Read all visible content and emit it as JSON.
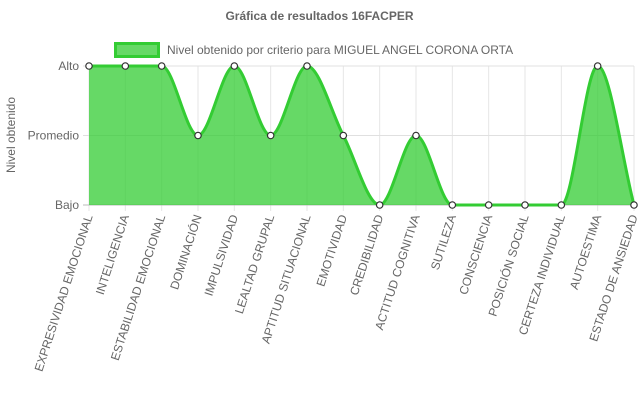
{
  "chart_data": {
    "type": "line",
    "title": "Gráfica de resultados 16FACPER",
    "ylabel": "Nivel obtenido",
    "xlabel": "",
    "y_levels": [
      "Bajo",
      "Promedio",
      "Alto"
    ],
    "categories": [
      "EXPRESIVIDAD EMOCIONAL",
      "INTELIGENCIA",
      "ESTABILIDAD EMOCIONAL",
      "DOMINACIÓN",
      "IMPULSIVIDAD",
      "LEALTAD GRUPAL",
      "APTITUD SITUACIONAL",
      "EMOTIVIDAD",
      "CREDIBILIDAD",
      "ACTITUD COGNITIVA",
      "SUTILEZA",
      "CONSCIENCIA",
      "POSICIÓN SOCIAL",
      "CERTEZA INDIVIDUAL",
      "AUTOESTIMA",
      "ESTADO DE ANSIEDAD"
    ],
    "series": [
      {
        "name": "Nivel obtenido por criterio para MIGUEL ANGEL CORONA ORTA",
        "values": [
          "Alto",
          "Alto",
          "Alto",
          "Promedio",
          "Alto",
          "Promedio",
          "Alto",
          "Promedio",
          "Bajo",
          "Promedio",
          "Bajo",
          "Bajo",
          "Bajo",
          "Bajo",
          "Alto",
          "Bajo"
        ],
        "color": "#33cc33",
        "fill": "rgba(51,204,51,0.75)"
      }
    ],
    "legend_position": "top",
    "grid": true,
    "smooth": true
  }
}
